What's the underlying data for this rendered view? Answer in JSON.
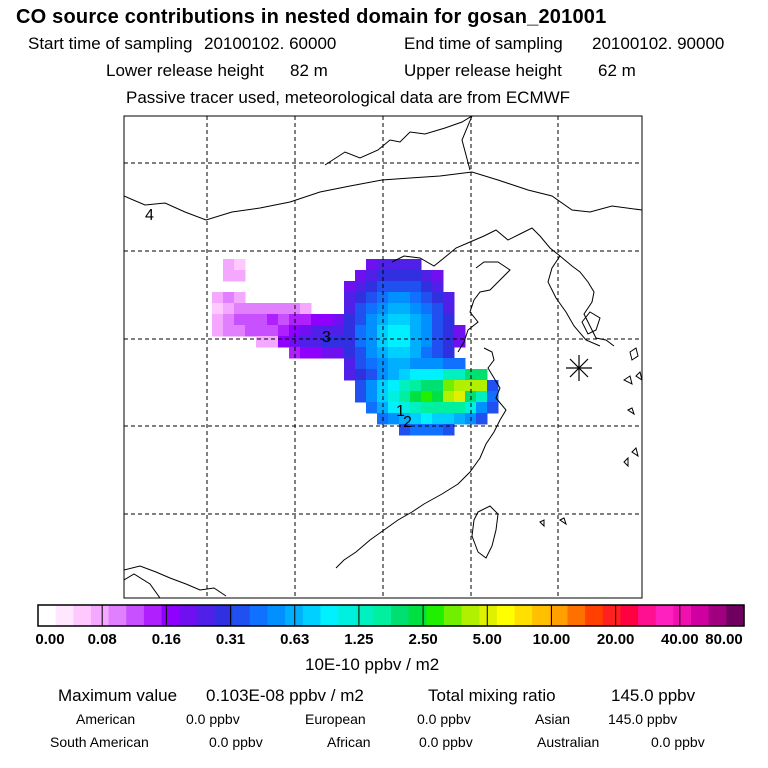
{
  "header": {
    "title": "CO  source contributions in nested domain for gosan_201001",
    "start_label": "Start time of sampling",
    "start_value": "20100102. 60000",
    "end_label": "End time of sampling",
    "end_value": "20100102. 90000",
    "lower_label": "Lower release height",
    "lower_value": "82 m",
    "upper_label": "Upper release height",
    "upper_value": "62 m",
    "note": "Passive tracer used, meteorological data are from ECMWF"
  },
  "map": {
    "region_labels": [
      "4",
      "3",
      "1",
      "2"
    ],
    "receptor_marker": "asterisk-receptor-icon"
  },
  "colorbar": {
    "ticks": [
      "0.00",
      "0.08",
      "0.16",
      "0.31",
      "0.63",
      "1.25",
      "2.50",
      "5.00",
      "10.00",
      "20.00",
      "40.00",
      "80.00"
    ],
    "units": "10E-10 ppbv / m2",
    "colors": [
      "#ffffff",
      "#ffe8ff",
      "#ffc8ff",
      "#f4a8ff",
      "#e080ff",
      "#c850ff",
      "#b020ff",
      "#9000ff",
      "#7010f0",
      "#5020e8",
      "#3030e0",
      "#2050f0",
      "#1070ff",
      "#0090ff",
      "#00b0ff",
      "#00d0ff",
      "#00f0ff",
      "#00f0e0",
      "#00f0c0",
      "#00f0a0",
      "#00e070",
      "#00e040",
      "#20f000",
      "#70f000",
      "#b0f000",
      "#e0f000",
      "#ffff00",
      "#ffe000",
      "#ffc000",
      "#ffa000",
      "#ff7000",
      "#ff4000",
      "#ff2020",
      "#ff0040",
      "#ff1090",
      "#ff20c0",
      "#f010b0",
      "#d000a0",
      "#a00080",
      "#700060"
    ]
  },
  "stats": {
    "max_label": "Maximum value",
    "max_value": "0.103E-08 ppbv / m2",
    "total_label": "Total mixing ratio",
    "total_value": "145.0 ppbv",
    "american_label": "American",
    "american_value": "0.0 ppbv",
    "european_label": "European",
    "european_value": "0.0 ppbv",
    "asian_label": "Asian",
    "asian_value": "145.0 ppbv",
    "samerican_label": "South American",
    "samerican_value": "0.0 ppbv",
    "african_label": "African",
    "african_value": "0.0 ppbv",
    "australian_label": "Australian",
    "australian_value": "0.0 ppbv"
  }
}
